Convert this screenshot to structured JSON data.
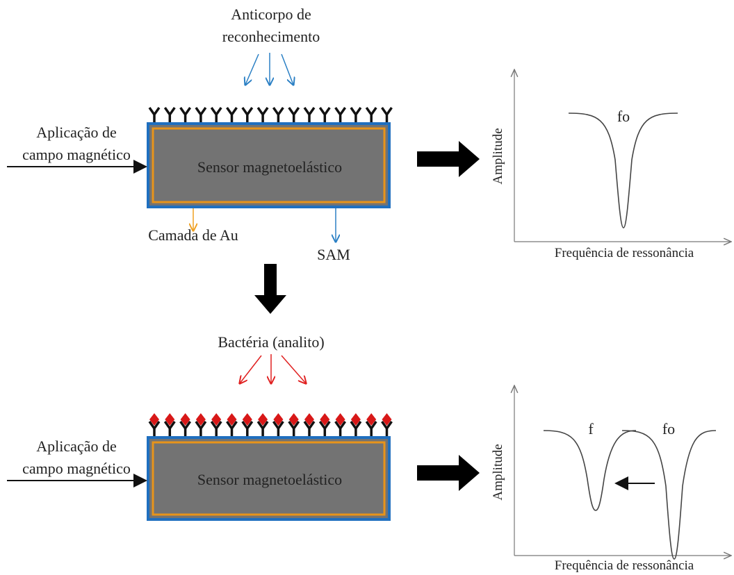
{
  "top": {
    "antibody_label": [
      "Anticorpo de",
      "reconhecimento"
    ],
    "field_label": [
      "Aplicação de",
      "campo magnético"
    ],
    "sensor_label": "Sensor magnetoelástico",
    "gold_label": "Camada de Au",
    "sam_label": "SAM",
    "graph": {
      "y_label": "Amplitude",
      "x_label": "Frequência de ressonância",
      "peak_label": "fo"
    }
  },
  "bottom": {
    "analyte_label": "Bactéria (analito)",
    "field_label": [
      "Aplicação de",
      "campo magnético"
    ],
    "sensor_label": "Sensor magnetoelástico",
    "graph": {
      "y_label": "Amplitude",
      "x_label": "Frequência de ressonância",
      "shifted_label": "f",
      "peak_label": "fo"
    }
  }
}
